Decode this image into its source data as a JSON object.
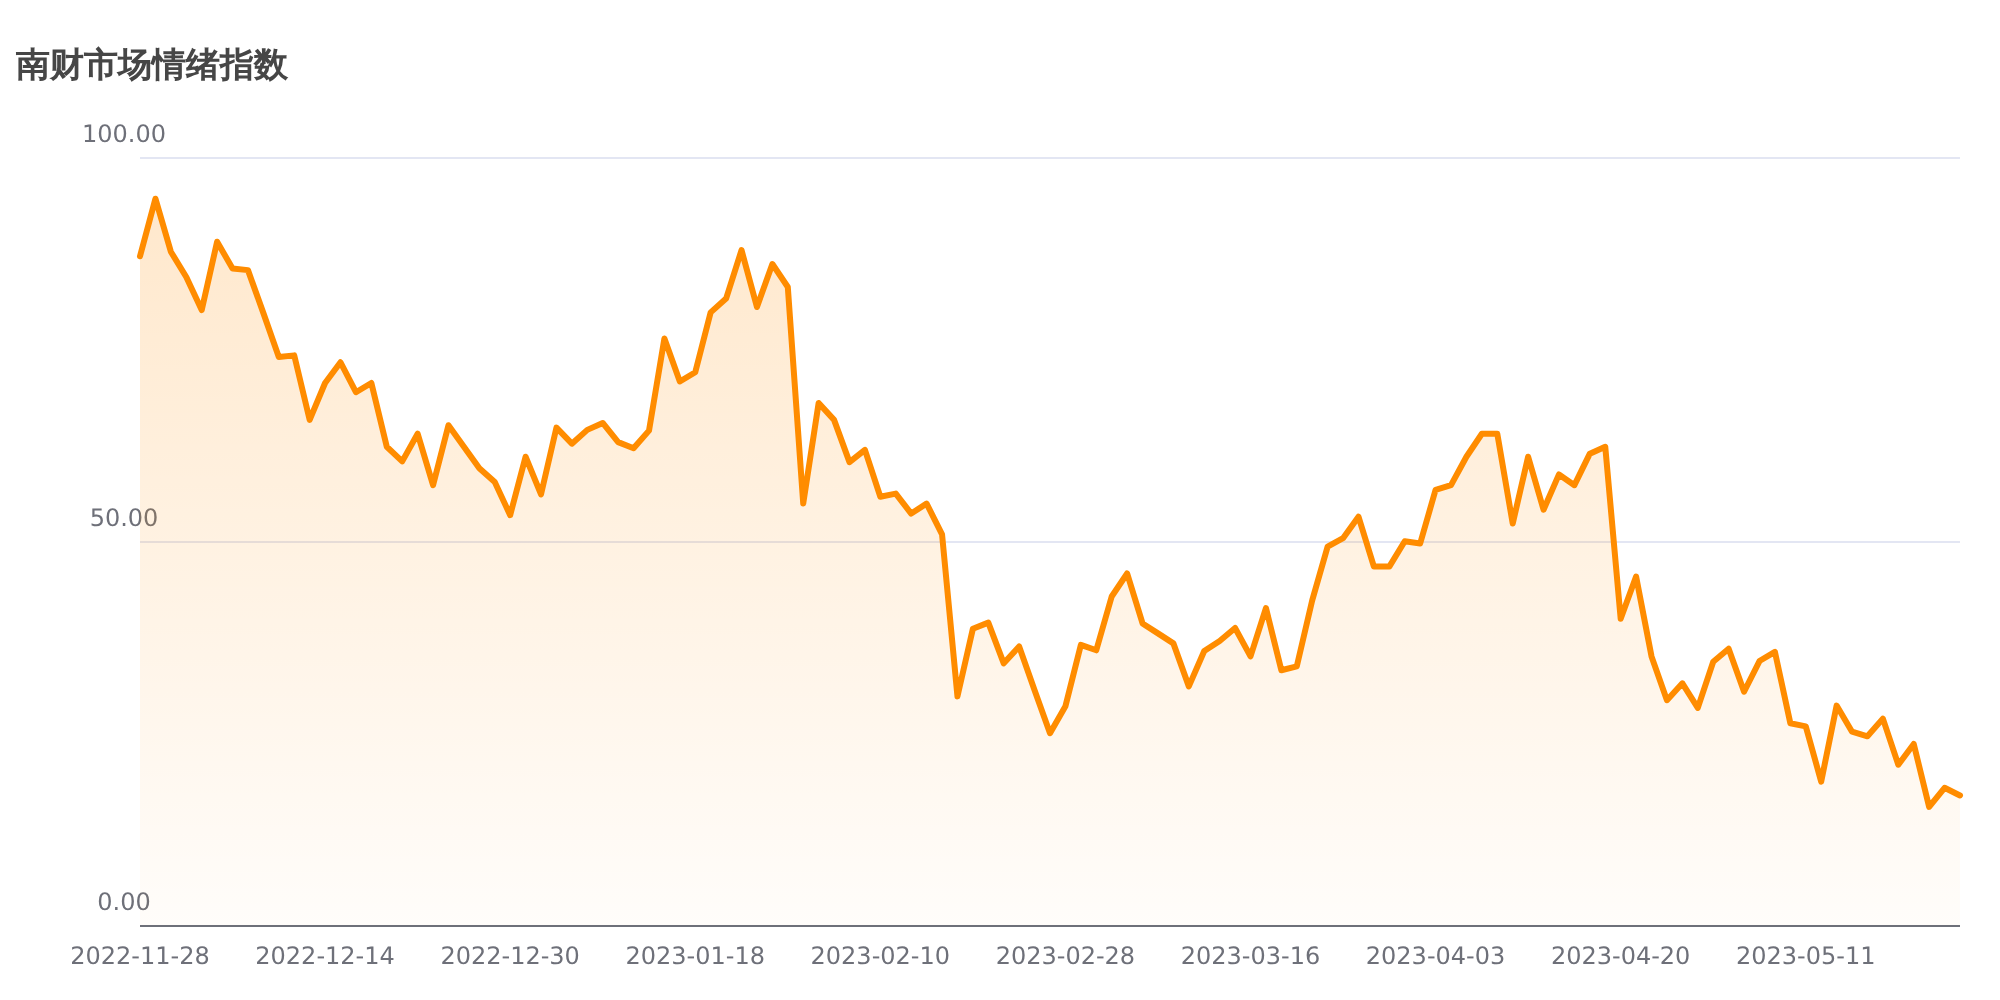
{
  "chart_data": {
    "type": "area",
    "title": "南财市场情绪指数",
    "categories": [
      "2022-11-28",
      null,
      null,
      null,
      null,
      null,
      null,
      null,
      null,
      null,
      null,
      null,
      "2022-12-14",
      null,
      null,
      null,
      null,
      null,
      null,
      null,
      null,
      null,
      null,
      null,
      "2022-12-30",
      null,
      null,
      null,
      null,
      null,
      null,
      null,
      null,
      null,
      null,
      null,
      "2023-01-18",
      null,
      null,
      null,
      null,
      null,
      null,
      null,
      null,
      null,
      null,
      null,
      "2023-02-10",
      null,
      null,
      null,
      null,
      null,
      null,
      null,
      null,
      null,
      null,
      null,
      "2023-02-28",
      null,
      null,
      null,
      null,
      null,
      null,
      null,
      null,
      null,
      null,
      null,
      "2023-03-16",
      null,
      null,
      null,
      null,
      null,
      null,
      null,
      null,
      null,
      null,
      null,
      "2023-04-03",
      null,
      null,
      null,
      null,
      null,
      null,
      null,
      null,
      null,
      null,
      null,
      "2023-04-20",
      null,
      null,
      null,
      null,
      null,
      null,
      null,
      null,
      null,
      null,
      null,
      "2023-05-11",
      null,
      null,
      null,
      null,
      null,
      null,
      null,
      null,
      null,
      null
    ],
    "series": [
      {
        "color": "#ff8c00",
        "values": [
          87.2,
          94.7,
          87.8,
          84.5,
          80.2,
          89.1,
          85.6,
          85.4,
          79.8,
          74.1,
          74.3,
          65.9,
          70.7,
          73.4,
          69.5,
          70.7,
          62.4,
          60.5,
          64.1,
          57.4,
          65.2,
          62.4,
          59.6,
          57.8,
          53.5,
          61.1,
          56.2,
          64.9,
          62.8,
          64.6,
          65.5,
          63.0,
          62.2,
          64.5,
          76.5,
          70.9,
          72.1,
          79.9,
          81.7,
          88.0,
          80.6,
          86.2,
          83.2,
          55.0,
          68.1,
          65.9,
          60.4,
          62.0,
          55.9,
          56.3,
          53.7,
          55.0,
          51.0,
          29.9,
          38.7,
          39.5,
          34.2,
          36.4,
          30.7,
          25.1,
          28.6,
          36.6,
          35.9,
          42.9,
          45.9,
          39.4,
          38.1,
          36.8,
          31.2,
          35.8,
          37.1,
          38.8,
          35.1,
          41.4,
          33.3,
          33.8,
          42.4,
          49.4,
          50.5,
          53.3,
          46.8,
          46.8,
          50.1,
          49.8,
          56.8,
          57.4,
          61.1,
          64.1,
          64.1,
          52.4,
          61.1,
          54.2,
          58.8,
          57.4,
          61.5,
          62.4,
          40.0,
          45.5,
          35.1,
          29.4,
          31.6,
          28.4,
          34.4,
          36.1,
          30.5,
          34.5,
          35.7,
          26.4,
          26.0,
          18.8,
          28.7,
          25.3,
          24.7,
          27.0,
          21.0,
          23.7,
          15.5,
          18.0,
          17.0
        ]
      }
    ],
    "ylim": [
      0,
      100
    ],
    "yticks": [
      {
        "value": 0,
        "label": "0.00"
      },
      {
        "value": 50,
        "label": "50.00"
      },
      {
        "value": 100,
        "label": "100.00"
      }
    ],
    "grid": "y"
  }
}
